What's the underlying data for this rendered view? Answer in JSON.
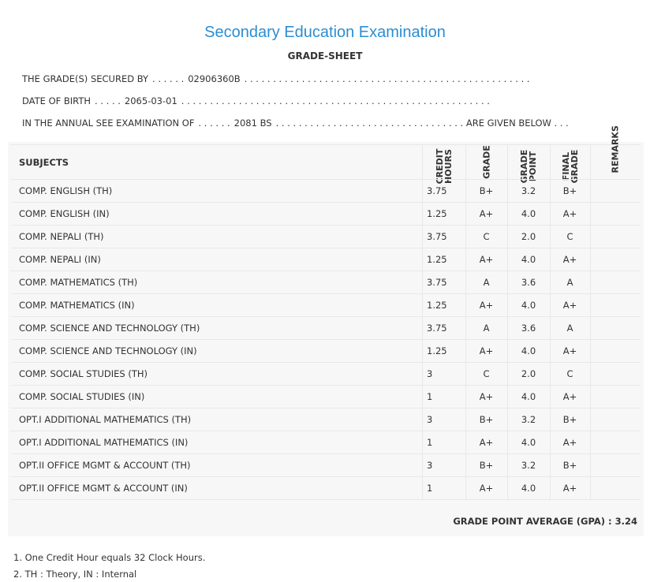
{
  "header": {
    "title": "Secondary Education Examination",
    "subtitle": "GRADE-SHEET"
  },
  "info": [
    {
      "label": "THE GRADE(S) SECURED BY",
      "lead": ". . . . . .",
      "value": "02906360B",
      "trail": ". . . . . . . . . . . . . . . . . . . . . . . . . . . . . . . . . . . . . . . . . . . . . . . . . ."
    },
    {
      "label": "DATE OF BIRTH",
      "lead": ". . . . .",
      "value": "2065-03-01",
      "trail": ". . . . . . . . . . . . . . . . . . . . . . . . . . . . . . . . . . . . . . . . . . . . . . . . . . . . . ."
    },
    {
      "label": "IN THE ANNUAL SEE EXAMINATION OF",
      "lead": ". . . . . .",
      "value": "2081 BS",
      "trail": ". . . . . . . . . . . . . . . . . . . . . . . . . . . . . . . . . ARE GIVEN BELOW . . ."
    }
  ],
  "table": {
    "headers": [
      "SUBJECTS",
      "CREDIT HOURS",
      "GRADE",
      "GRADE POINT",
      "FINAL GRADE",
      "REMARKS"
    ],
    "rows": [
      [
        "COMP. ENGLISH (TH)",
        "3.75",
        "B+",
        "3.2",
        "B+"
      ],
      [
        "COMP. ENGLISH (IN)",
        "1.25",
        "A+",
        "4.0",
        "A+"
      ],
      [
        "COMP. NEPALI (TH)",
        "3.75",
        "C",
        "2.0",
        "C"
      ],
      [
        "COMP. NEPALI (IN)",
        "1.25",
        "A+",
        "4.0",
        "A+"
      ],
      [
        "COMP. MATHEMATICS (TH)",
        "3.75",
        "A",
        "3.6",
        "A"
      ],
      [
        "COMP. MATHEMATICS (IN)",
        "1.25",
        "A+",
        "4.0",
        "A+"
      ],
      [
        "COMP. SCIENCE AND TECHNOLOGY (TH)",
        "3.75",
        "A",
        "3.6",
        "A"
      ],
      [
        "COMP. SCIENCE AND TECHNOLOGY (IN)",
        "1.25",
        "A+",
        "4.0",
        "A+"
      ],
      [
        "COMP. SOCIAL STUDIES (TH)",
        "3",
        "C",
        "2.0",
        "C"
      ],
      [
        "COMP. SOCIAL STUDIES (IN)",
        "1",
        "A+",
        "4.0",
        "A+"
      ],
      [
        "OPT.I ADDITIONAL MATHEMATICS (TH)",
        "3",
        "B+",
        "3.2",
        "B+"
      ],
      [
        "OPT.I ADDITIONAL MATHEMATICS (IN)",
        "1",
        "A+",
        "4.0",
        "A+"
      ],
      [
        "OPT.II OFFICE MGMT & ACCOUNT (TH)",
        "3",
        "B+",
        "3.2",
        "B+"
      ],
      [
        "OPT.II OFFICE MGMT & ACCOUNT (IN)",
        "1",
        "A+",
        "4.0",
        "A+"
      ]
    ]
  },
  "gpa": {
    "label": "GRADE POINT AVERAGE (GPA) :",
    "value": "3.24"
  },
  "notes": [
    "1. One Credit Hour equals 32 Clock Hours.",
    "2. TH : Theory, IN : Internal"
  ]
}
